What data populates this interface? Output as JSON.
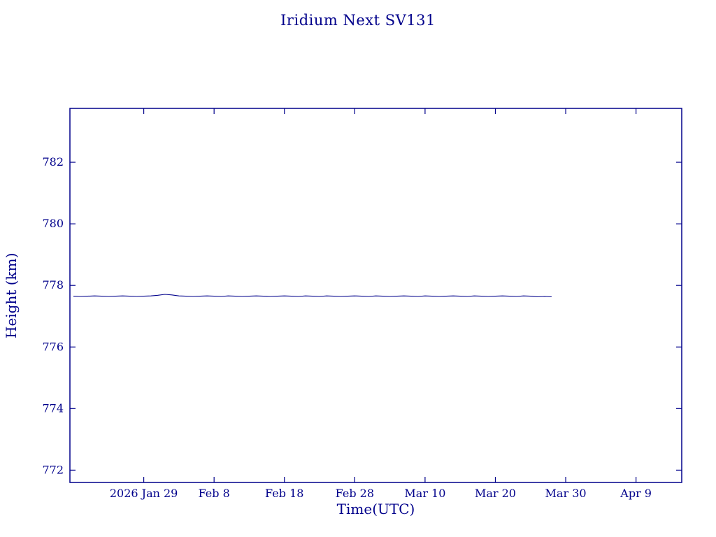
{
  "theme": {
    "accent": "#00008B",
    "background": "#FFFFFF"
  },
  "chart_data": {
    "type": "line",
    "title": "Iridium Next SV131",
    "xlabel": "Time(UTC)",
    "ylabel": "Height (km)",
    "x_axis_note": "day of year 2026",
    "xlim": [
      18.5,
      105.5
    ],
    "ylim": [
      771.6,
      783.75
    ],
    "grid": false,
    "legend": null,
    "x_ticks": [
      {
        "pos": 29,
        "label": "2026 Jan 29"
      },
      {
        "pos": 39,
        "label": "Feb 8"
      },
      {
        "pos": 49,
        "label": "Feb 18"
      },
      {
        "pos": 59,
        "label": "Feb 28"
      },
      {
        "pos": 69,
        "label": "Mar 10"
      },
      {
        "pos": 79,
        "label": "Mar 20"
      },
      {
        "pos": 89,
        "label": "Mar 30"
      },
      {
        "pos": 99,
        "label": "Apr 9"
      }
    ],
    "y_ticks": [
      {
        "pos": 772,
        "label": "772"
      },
      {
        "pos": 774,
        "label": "774"
      },
      {
        "pos": 776,
        "label": "776"
      },
      {
        "pos": 778,
        "label": "778"
      },
      {
        "pos": 780,
        "label": "780"
      },
      {
        "pos": 782,
        "label": "782"
      }
    ],
    "series": [
      {
        "name": "height-km",
        "color": "#00008B",
        "points": [
          [
            19,
            777.65
          ],
          [
            20,
            777.64
          ],
          [
            21,
            777.65
          ],
          [
            22,
            777.66
          ],
          [
            23,
            777.65
          ],
          [
            24,
            777.64
          ],
          [
            25,
            777.65
          ],
          [
            26,
            777.66
          ],
          [
            27,
            777.65
          ],
          [
            28,
            777.64
          ],
          [
            29,
            777.65
          ],
          [
            30,
            777.66
          ],
          [
            31,
            777.68
          ],
          [
            32,
            777.71
          ],
          [
            33,
            777.69
          ],
          [
            34,
            777.66
          ],
          [
            35,
            777.65
          ],
          [
            36,
            777.64
          ],
          [
            37,
            777.65
          ],
          [
            38,
            777.66
          ],
          [
            39,
            777.65
          ],
          [
            40,
            777.64
          ],
          [
            41,
            777.66
          ],
          [
            42,
            777.65
          ],
          [
            43,
            777.64
          ],
          [
            44,
            777.65
          ],
          [
            45,
            777.66
          ],
          [
            46,
            777.65
          ],
          [
            47,
            777.64
          ],
          [
            48,
            777.65
          ],
          [
            49,
            777.66
          ],
          [
            50,
            777.65
          ],
          [
            51,
            777.64
          ],
          [
            52,
            777.66
          ],
          [
            53,
            777.65
          ],
          [
            54,
            777.64
          ],
          [
            55,
            777.66
          ],
          [
            56,
            777.65
          ],
          [
            57,
            777.64
          ],
          [
            58,
            777.65
          ],
          [
            59,
            777.66
          ],
          [
            60,
            777.65
          ],
          [
            61,
            777.64
          ],
          [
            62,
            777.66
          ],
          [
            63,
            777.65
          ],
          [
            64,
            777.64
          ],
          [
            65,
            777.65
          ],
          [
            66,
            777.66
          ],
          [
            67,
            777.65
          ],
          [
            68,
            777.64
          ],
          [
            69,
            777.66
          ],
          [
            70,
            777.65
          ],
          [
            71,
            777.64
          ],
          [
            72,
            777.65
          ],
          [
            73,
            777.66
          ],
          [
            74,
            777.65
          ],
          [
            75,
            777.64
          ],
          [
            76,
            777.66
          ],
          [
            77,
            777.65
          ],
          [
            78,
            777.64
          ],
          [
            79,
            777.65
          ],
          [
            80,
            777.66
          ],
          [
            81,
            777.65
          ],
          [
            82,
            777.64
          ],
          [
            83,
            777.66
          ],
          [
            84,
            777.65
          ],
          [
            85,
            777.63
          ],
          [
            86,
            777.64
          ],
          [
            87,
            777.63
          ]
        ]
      }
    ]
  }
}
